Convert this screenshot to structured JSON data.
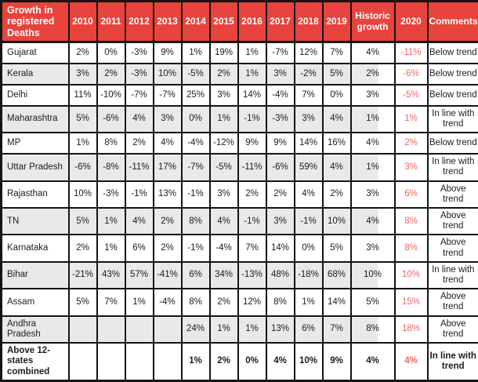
{
  "header": {
    "title": "Growth in registered Deaths"
  },
  "chart_data": {
    "type": "table",
    "title": "Growth in registered Deaths",
    "columns": [
      "2010",
      "2011",
      "2012",
      "2013",
      "2014",
      "2015",
      "2016",
      "2017",
      "2018",
      "2019",
      "Historic growth",
      "2020",
      "Comments"
    ],
    "rows": [
      {
        "state": "Gujarat",
        "cells": [
          "2%",
          "0%",
          "-3%",
          "9%",
          "1%",
          "19%",
          "1%",
          "-7%",
          "12%",
          "7%",
          "4%",
          "-11%",
          "Below trend"
        ],
        "shaded": false,
        "bold": false
      },
      {
        "state": "Kerala",
        "cells": [
          "3%",
          "2%",
          "-3%",
          "10%",
          "-5%",
          "2%",
          "1%",
          "3%",
          "-2%",
          "5%",
          "2%",
          "-6%",
          "Below trend"
        ],
        "shaded": true,
        "bold": false
      },
      {
        "state": "Delhi",
        "cells": [
          "11%",
          "-10%",
          "-7%",
          "-7%",
          "25%",
          "3%",
          "14%",
          "-4%",
          "7%",
          "0%",
          "3%",
          "-5%",
          "Below trend"
        ],
        "shaded": false,
        "bold": false
      },
      {
        "state": "Maharashtra",
        "cells": [
          "5%",
          "-6%",
          "4%",
          "3%",
          "0%",
          "1%",
          "-1%",
          "-3%",
          "3%",
          "4%",
          "1%",
          "1%",
          "In line with trend"
        ],
        "shaded": true,
        "bold": false
      },
      {
        "state": "MP",
        "cells": [
          "1%",
          "8%",
          "2%",
          "4%",
          "-4%",
          "-12%",
          "9%",
          "9%",
          "14%",
          "16%",
          "4%",
          "2%",
          "Below trend"
        ],
        "shaded": false,
        "bold": false
      },
      {
        "state": "Uttar Pradesh",
        "cells": [
          "-6%",
          "-8%",
          "-11%",
          "17%",
          "-7%",
          "-5%",
          "-11%",
          "-6%",
          "59%",
          "4%",
          "1%",
          "3%",
          "In line with trend"
        ],
        "shaded": true,
        "bold": false
      },
      {
        "state": "Rajasthan",
        "cells": [
          "10%",
          "-3%",
          "-1%",
          "13%",
          "-1%",
          "3%",
          "2%",
          "2%",
          "4%",
          "2%",
          "3%",
          "6%",
          "Above trend"
        ],
        "shaded": false,
        "bold": false
      },
      {
        "state": "TN",
        "cells": [
          "5%",
          "1%",
          "4%",
          "2%",
          "8%",
          "4%",
          "-1%",
          "3%",
          "-1%",
          "10%",
          "4%",
          "8%",
          "Above trend"
        ],
        "shaded": true,
        "bold": false
      },
      {
        "state": "Karnataka",
        "cells": [
          "2%",
          "1%",
          "6%",
          "2%",
          "-1%",
          "-4%",
          "7%",
          "14%",
          "0%",
          "5%",
          "3%",
          "8%",
          "Above trend"
        ],
        "shaded": false,
        "bold": false
      },
      {
        "state": "Bihar",
        "cells": [
          "-21%",
          "43%",
          "57%",
          "-41%",
          "6%",
          "34%",
          "-13%",
          "48%",
          "-18%",
          "68%",
          "10%",
          "10%",
          "In line with trend"
        ],
        "shaded": true,
        "bold": false
      },
      {
        "state": "Assam",
        "cells": [
          "5%",
          "7%",
          "1%",
          "-4%",
          "8%",
          "2%",
          "12%",
          "8%",
          "1%",
          "14%",
          "5%",
          "15%",
          "Above trend"
        ],
        "shaded": false,
        "bold": false
      },
      {
        "state": "Andhra Pradesh",
        "cells": [
          "",
          "",
          "",
          "",
          "24%",
          "1%",
          "1%",
          "13%",
          "6%",
          "7%",
          "8%",
          "18%",
          "Above trend"
        ],
        "shaded": true,
        "bold": false
      },
      {
        "state": "Above 12-states combined",
        "cells": [
          "",
          "",
          "",
          "",
          "1%",
          "2%",
          "0%",
          "4%",
          "10%",
          "9%",
          "4%",
          "4%",
          "In line with trend"
        ],
        "shaded": false,
        "bold": true
      }
    ]
  },
  "colors": {
    "header_bg": "#e8433c",
    "header_text": "#ffffff",
    "shaded_row": "#e9e9e9",
    "accent_2020": "#f2645d",
    "border": "#141414"
  }
}
